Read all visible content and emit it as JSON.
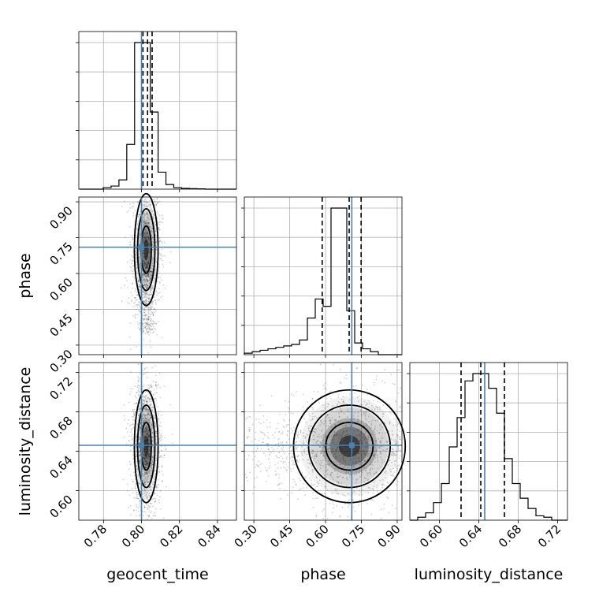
{
  "chart_data": {
    "type": "corner",
    "parameters": [
      "geocent_time",
      "phase",
      "luminosity_distance"
    ],
    "truths": {
      "geocent_time": 0.8,
      "phase": 0.71,
      "luminosity_distance": 0.646
    },
    "truth_color": "#4682b4",
    "ranges": {
      "geocent_time": [
        0.767,
        0.85
      ],
      "phase": [
        0.26,
        0.92
      ],
      "luminosity_distance": [
        0.57,
        0.73
      ]
    },
    "ticks": {
      "geocent_time": [
        0.78,
        0.8,
        0.82,
        0.84
      ],
      "phase": [
        0.3,
        0.45,
        0.6,
        0.75,
        0.9
      ],
      "luminosity_distance": [
        0.6,
        0.64,
        0.68,
        0.72
      ]
    },
    "tick_labels": {
      "geocent_time": [
        "0.78",
        "0.80",
        "0.82",
        "0.84"
      ],
      "phase": [
        "0.30",
        "0.45",
        "0.60",
        "0.75",
        "0.90"
      ],
      "luminosity_distance": [
        "0.60",
        "0.64",
        "0.68",
        "0.72"
      ]
    },
    "quantiles": {
      "geocent_time": [
        0.8008,
        0.8032,
        0.8056
      ],
      "phase": [
        0.586,
        0.699,
        0.749
      ],
      "luminosity_distance": [
        0.622,
        0.642,
        0.666
      ]
    },
    "histograms": {
      "geocent_time": {
        "bins": [
          0.7675,
          0.85
        ],
        "counts": [
          0,
          0,
          0,
          1,
          2,
          6,
          29,
          95,
          95,
          50,
          11,
          3,
          1,
          0.5,
          0.3,
          0.2,
          0,
          0,
          0,
          0
        ]
      },
      "phase": {
        "bins": [
          0.26,
          0.92
        ],
        "counts": [
          1,
          2,
          3,
          4,
          5,
          6,
          7,
          10,
          25,
          38,
          33,
          100,
          100,
          30,
          8,
          4,
          2,
          0,
          0,
          0
        ]
      },
      "luminosity_distance": {
        "bins": [
          0.57,
          0.73
        ],
        "counts": [
          0,
          2,
          5,
          12,
          25,
          50,
          70,
          95,
          100,
          100,
          90,
          73,
          42,
          25,
          15,
          8,
          3,
          2,
          0,
          0
        ]
      }
    },
    "grid": true
  }
}
